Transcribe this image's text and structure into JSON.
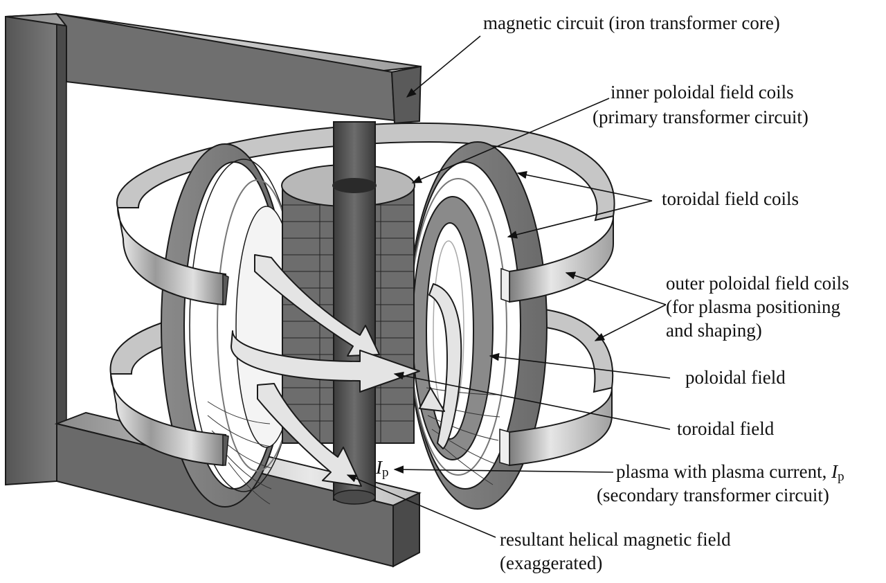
{
  "labels": {
    "magnetic_circuit": "magnetic circuit (iron transformer core)",
    "inner_pf_line1": "inner poloidal field coils",
    "inner_pf_line2": "(primary transformer circuit)",
    "toroidal_coils": "toroidal field coils",
    "outer_pf_line1": "outer poloidal field coils",
    "outer_pf_line2": "(for plasma positioning",
    "outer_pf_line3": "and shaping)",
    "poloidal_field": "poloidal field",
    "toroidal_field": "toroidal field",
    "plasma_line1": "plasma with plasma current, ",
    "plasma_line2": "(secondary transformer circuit)",
    "helical_line1": "resultant helical magnetic field",
    "helical_line2": "(exaggerated)"
  },
  "symbols": {
    "current": "I",
    "current_subscript": "p"
  },
  "colors": {
    "core_front": "#6e6e6e",
    "core_top": "#9a9a9a",
    "core_dark": "#3f3f3f",
    "coil_light": "#d8d8d8",
    "coil_mid": "#9c9c9c",
    "coil_dark": "#6a6a6a",
    "outline": "#1a1a1a",
    "arrow_fill": "#e6e6e6"
  }
}
